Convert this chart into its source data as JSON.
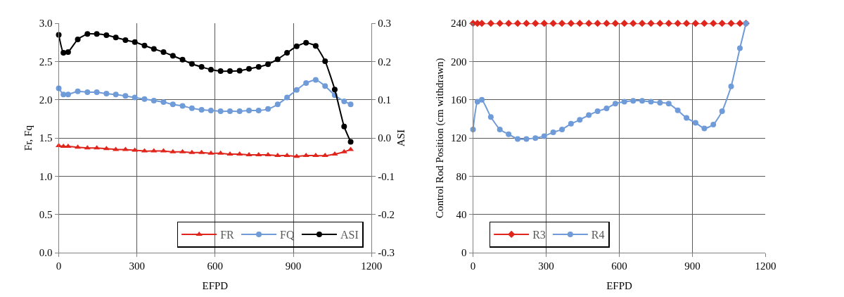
{
  "chart_data": [
    {
      "type": "line",
      "xlabel": "EFPD",
      "ylabel": "Fr, Fq",
      "y2label": "ASI",
      "x": [
        0,
        18,
        36,
        73,
        110,
        146,
        183,
        219,
        256,
        292,
        329,
        365,
        402,
        438,
        475,
        511,
        548,
        584,
        621,
        657,
        694,
        730,
        767,
        803,
        840,
        876,
        913,
        949,
        986,
        1022,
        1059,
        1095,
        1120
      ],
      "series": [
        {
          "name": "FR",
          "color": "#e0251c",
          "marker": "triangle",
          "values": [
            1.4,
            1.39,
            1.39,
            1.38,
            1.37,
            1.37,
            1.36,
            1.35,
            1.35,
            1.34,
            1.33,
            1.33,
            1.33,
            1.32,
            1.32,
            1.31,
            1.31,
            1.3,
            1.3,
            1.29,
            1.29,
            1.28,
            1.28,
            1.28,
            1.27,
            1.27,
            1.26,
            1.27,
            1.27,
            1.27,
            1.29,
            1.32,
            1.35
          ]
        },
        {
          "name": "FQ",
          "color": "#6f9bd8",
          "marker": "circle",
          "values": [
            2.15,
            2.07,
            2.07,
            2.11,
            2.1,
            2.1,
            2.08,
            2.07,
            2.05,
            2.03,
            2.01,
            1.99,
            1.97,
            1.94,
            1.92,
            1.89,
            1.87,
            1.86,
            1.85,
            1.85,
            1.85,
            1.86,
            1.86,
            1.88,
            1.94,
            2.03,
            2.13,
            2.22,
            2.26,
            2.18,
            2.06,
            1.98,
            1.94
          ]
        },
        {
          "name": "ASI",
          "color": "#000000",
          "marker": "circle",
          "axis": "y2",
          "values": [
            0.27,
            0.223,
            0.225,
            0.258,
            0.272,
            0.272,
            0.269,
            0.263,
            0.256,
            0.251,
            0.242,
            0.233,
            0.225,
            0.215,
            0.205,
            0.194,
            0.186,
            0.179,
            0.175,
            0.175,
            0.176,
            0.181,
            0.186,
            0.193,
            0.206,
            0.223,
            0.24,
            0.249,
            0.241,
            0.201,
            0.127,
            0.03,
            -0.01
          ]
        }
      ],
      "xlim": [
        0,
        1200
      ],
      "xticks": [
        0,
        300,
        600,
        900,
        1200
      ],
      "ylim": [
        0,
        3
      ],
      "yticks": [
        {
          "value": 0,
          "label": "0.0"
        },
        {
          "value": 0.5,
          "label": "0.5"
        },
        {
          "value": 1,
          "label": "1.0"
        },
        {
          "value": 1.5,
          "label": "1.5"
        },
        {
          "value": 2,
          "label": "2.0"
        },
        {
          "value": 2.5,
          "label": "2.5"
        },
        {
          "value": 3,
          "label": "3.0"
        }
      ],
      "y2lim": [
        -0.3,
        0.3
      ],
      "y2ticks": [
        {
          "value": -0.3,
          "label": "-0.3"
        },
        {
          "value": -0.2,
          "label": "-0.2"
        },
        {
          "value": -0.1,
          "label": "-0.1"
        },
        {
          "value": 0,
          "label": "0.0"
        },
        {
          "value": 0.1,
          "label": "0.1"
        },
        {
          "value": 0.2,
          "label": "0.2"
        },
        {
          "value": 0.3,
          "label": "0.3"
        }
      ],
      "grid": true,
      "legend": "bottom right"
    },
    {
      "type": "line",
      "xlabel": "EFPD",
      "ylabel": "Control Rod Position (cm withdrawn)",
      "x": [
        0,
        18,
        36,
        73,
        110,
        146,
        183,
        219,
        256,
        292,
        329,
        365,
        402,
        438,
        475,
        511,
        548,
        584,
        621,
        657,
        694,
        730,
        767,
        803,
        840,
        876,
        913,
        949,
        986,
        1022,
        1059,
        1095,
        1120
      ],
      "series": [
        {
          "name": "R3",
          "color": "#e0251c",
          "marker": "diamond",
          "values": [
            240,
            240,
            240,
            240,
            240,
            240,
            240,
            240,
            240,
            240,
            240,
            240,
            240,
            240,
            240,
            240,
            240,
            240,
            240,
            240,
            240,
            240,
            240,
            240,
            240,
            240,
            240,
            240,
            240,
            240,
            240,
            240,
            240
          ]
        },
        {
          "name": "R4",
          "color": "#6f9bd8",
          "marker": "circle",
          "values": [
            129,
            158,
            160,
            142,
            129,
            124,
            119,
            119,
            120,
            122,
            126,
            129,
            135,
            139,
            144,
            148,
            151,
            156,
            158,
            159,
            159,
            158,
            157,
            156,
            149,
            141,
            136,
            130,
            134,
            148,
            174,
            214,
            240
          ]
        }
      ],
      "xlim": [
        0,
        1200
      ],
      "xticks": [
        0,
        300,
        600,
        900,
        1200
      ],
      "ylim": [
        0,
        240
      ],
      "yticks": [
        0,
        40,
        80,
        120,
        160,
        200,
        240
      ],
      "grid": true,
      "legend": "bottom left"
    }
  ]
}
